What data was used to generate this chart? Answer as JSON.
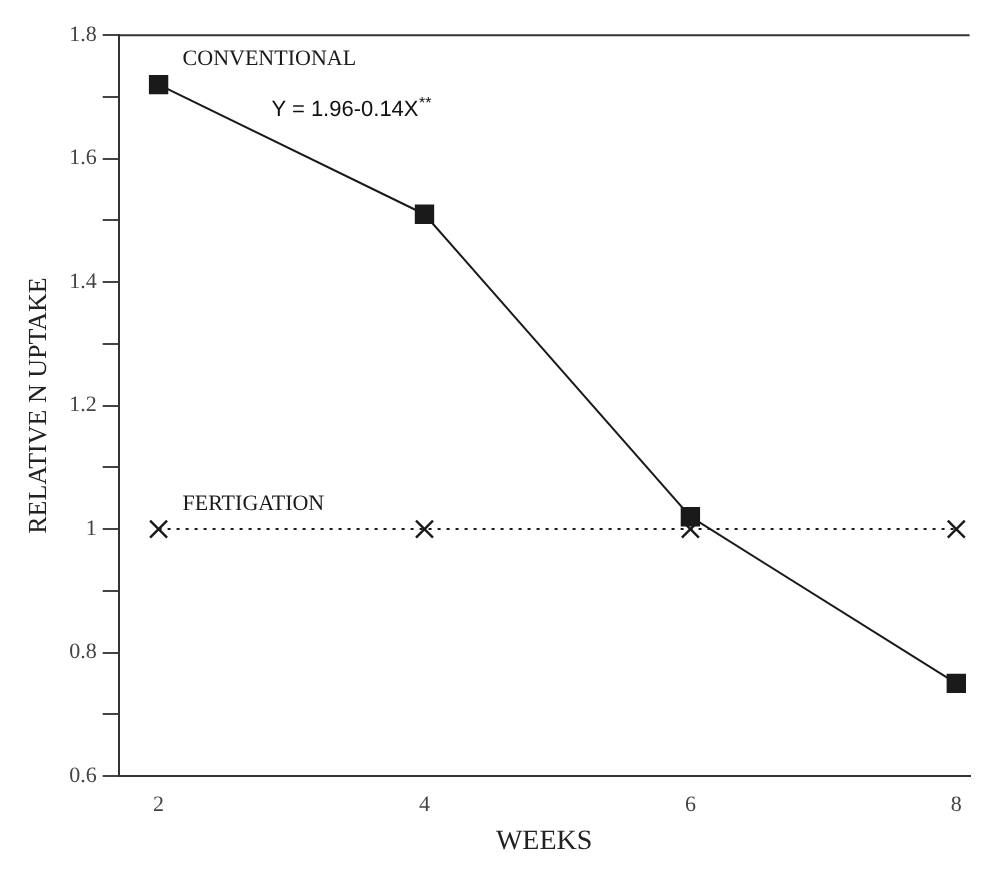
{
  "chart_data": {
    "type": "line",
    "xlabel": "WEEKS",
    "ylabel": "RELATIVE N UPTAKE",
    "x": [
      2,
      4,
      6,
      8
    ],
    "series": [
      {
        "name": "CONVENTIONAL",
        "color": "#1a1a1a",
        "values": [
          1.72,
          1.51,
          1.02,
          0.75
        ],
        "marker": "square",
        "line_style": "solid"
      },
      {
        "name": "FERTIGATION",
        "color": "#1a1a1a",
        "values": [
          1,
          1,
          1,
          1
        ],
        "marker": "cross",
        "line_style": "dotted"
      }
    ],
    "annotations": [
      "Y = 1.96-0.14X$^{**}$"
    ],
    "xlim": [
      1.7,
      8.1
    ],
    "xticks": [
      2,
      4,
      6,
      8
    ],
    "ylim": [
      0.6,
      1.8
    ],
    "yticks": [
      {
        "value": 0.6,
        "label": "0.6"
      },
      {
        "value": 0.7,
        "label": null
      },
      {
        "value": 0.8,
        "label": "0.8"
      },
      {
        "value": 0.9,
        "label": null
      },
      1,
      {
        "value": 1.1,
        "label": null
      },
      {
        "value": 1.2,
        "label": "1.2"
      },
      {
        "value": 1.3,
        "label": null
      },
      {
        "value": 1.4,
        "label": "1.4"
      },
      {
        "value": 1.5,
        "label": null
      },
      {
        "value": 1.6,
        "label": "1.6"
      },
      {
        "value": 1.7,
        "label": null
      },
      {
        "value": 1.8,
        "label": "1.8"
      }
    ],
    "grid": false,
    "legend": false
  }
}
